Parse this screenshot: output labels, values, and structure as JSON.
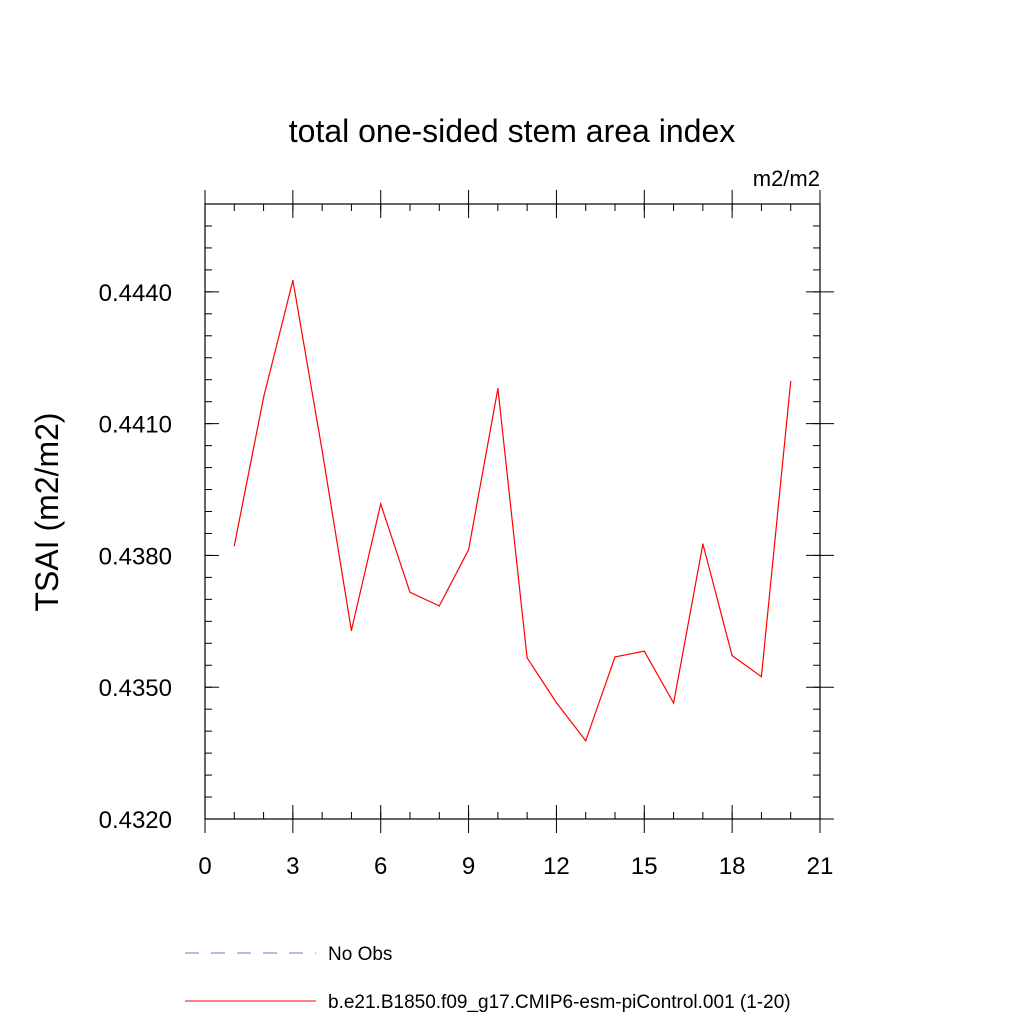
{
  "chart_data": {
    "type": "line",
    "title": "total one-sided stem area index",
    "units_label": "m2/m2",
    "ylabel": "TSAI  (m2/m2)",
    "xlabel": "",
    "xlim": [
      0,
      21
    ],
    "ylim": [
      0.432,
      0.446
    ],
    "x_ticks": [
      "0",
      "3",
      "6",
      "9",
      "12",
      "15",
      "18",
      "21"
    ],
    "x_tick_values": [
      0,
      3,
      6,
      9,
      12,
      15,
      18,
      21
    ],
    "x_minor_step": 1,
    "y_ticks": [
      "0.4320",
      "0.4350",
      "0.4380",
      "0.4410",
      "0.4440"
    ],
    "y_tick_values": [
      0.432,
      0.435,
      0.438,
      0.441,
      0.444
    ],
    "y_minor_step": 0.0005,
    "grid": false,
    "legend_position": "bottom",
    "series": [
      {
        "name": "b.e21.B1850.f09_g17.CMIP6-esm-piControl.001 (1-20)",
        "color": "#ff0000",
        "style": "solid",
        "x": [
          1,
          2,
          3,
          4,
          5,
          6,
          7,
          8,
          9,
          10,
          11,
          12,
          13,
          14,
          15,
          16,
          17,
          18,
          19,
          20
        ],
        "y": [
          0.43822,
          0.4416,
          0.44426,
          0.44039,
          0.43629,
          0.43917,
          0.43716,
          0.43685,
          0.43813,
          0.4418,
          0.43567,
          0.43465,
          0.43378,
          0.43569,
          0.43582,
          0.43464,
          0.43826,
          0.43572,
          0.43524,
          0.44196
        ]
      }
    ],
    "legend": [
      {
        "label": "No Obs",
        "color": "#7b6fd0",
        "style": "dashed"
      },
      {
        "label": "b.e21.B1850.f09_g17.CMIP6-esm-piControl.001 (1-20)",
        "color": "#ff0000",
        "style": "solid"
      }
    ]
  }
}
